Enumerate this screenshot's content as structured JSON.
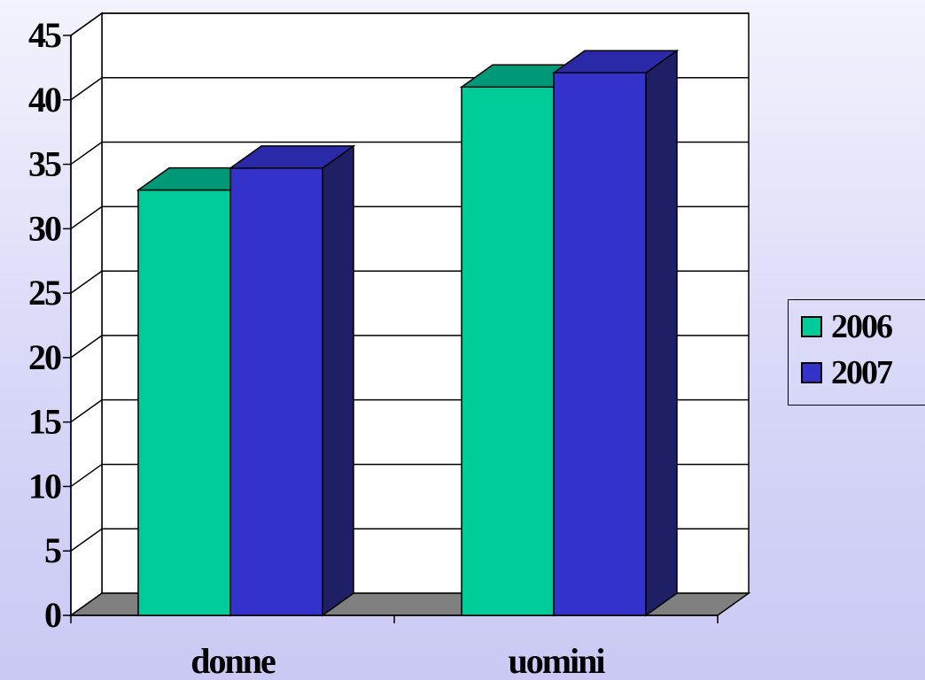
{
  "chart_data": {
    "type": "bar",
    "style": "3d-clustered-column",
    "categories": [
      "donne",
      "uomini"
    ],
    "series": [
      {
        "name": "2006",
        "values": [
          33,
          41
        ],
        "color": "#00cc99",
        "top_color": "#009977",
        "side_color": "#008866"
      },
      {
        "name": "2007",
        "values": [
          34.7,
          42.1
        ],
        "color": "#3333cc",
        "top_color": "#2a2aa8",
        "side_color": "#1f1f66"
      }
    ],
    "title": "",
    "xlabel": "",
    "ylabel": "",
    "ylim": [
      0,
      45
    ],
    "yticks": [
      0,
      5,
      10,
      15,
      20,
      25,
      30,
      35,
      40,
      45
    ],
    "ytick_labels": [
      "0",
      "5",
      "10",
      "15",
      "20",
      "25",
      "30",
      "35",
      "40",
      "45"
    ],
    "grid": true,
    "legend": "right",
    "floor_color": "#808080",
    "wall_color": "#ffffff"
  }
}
